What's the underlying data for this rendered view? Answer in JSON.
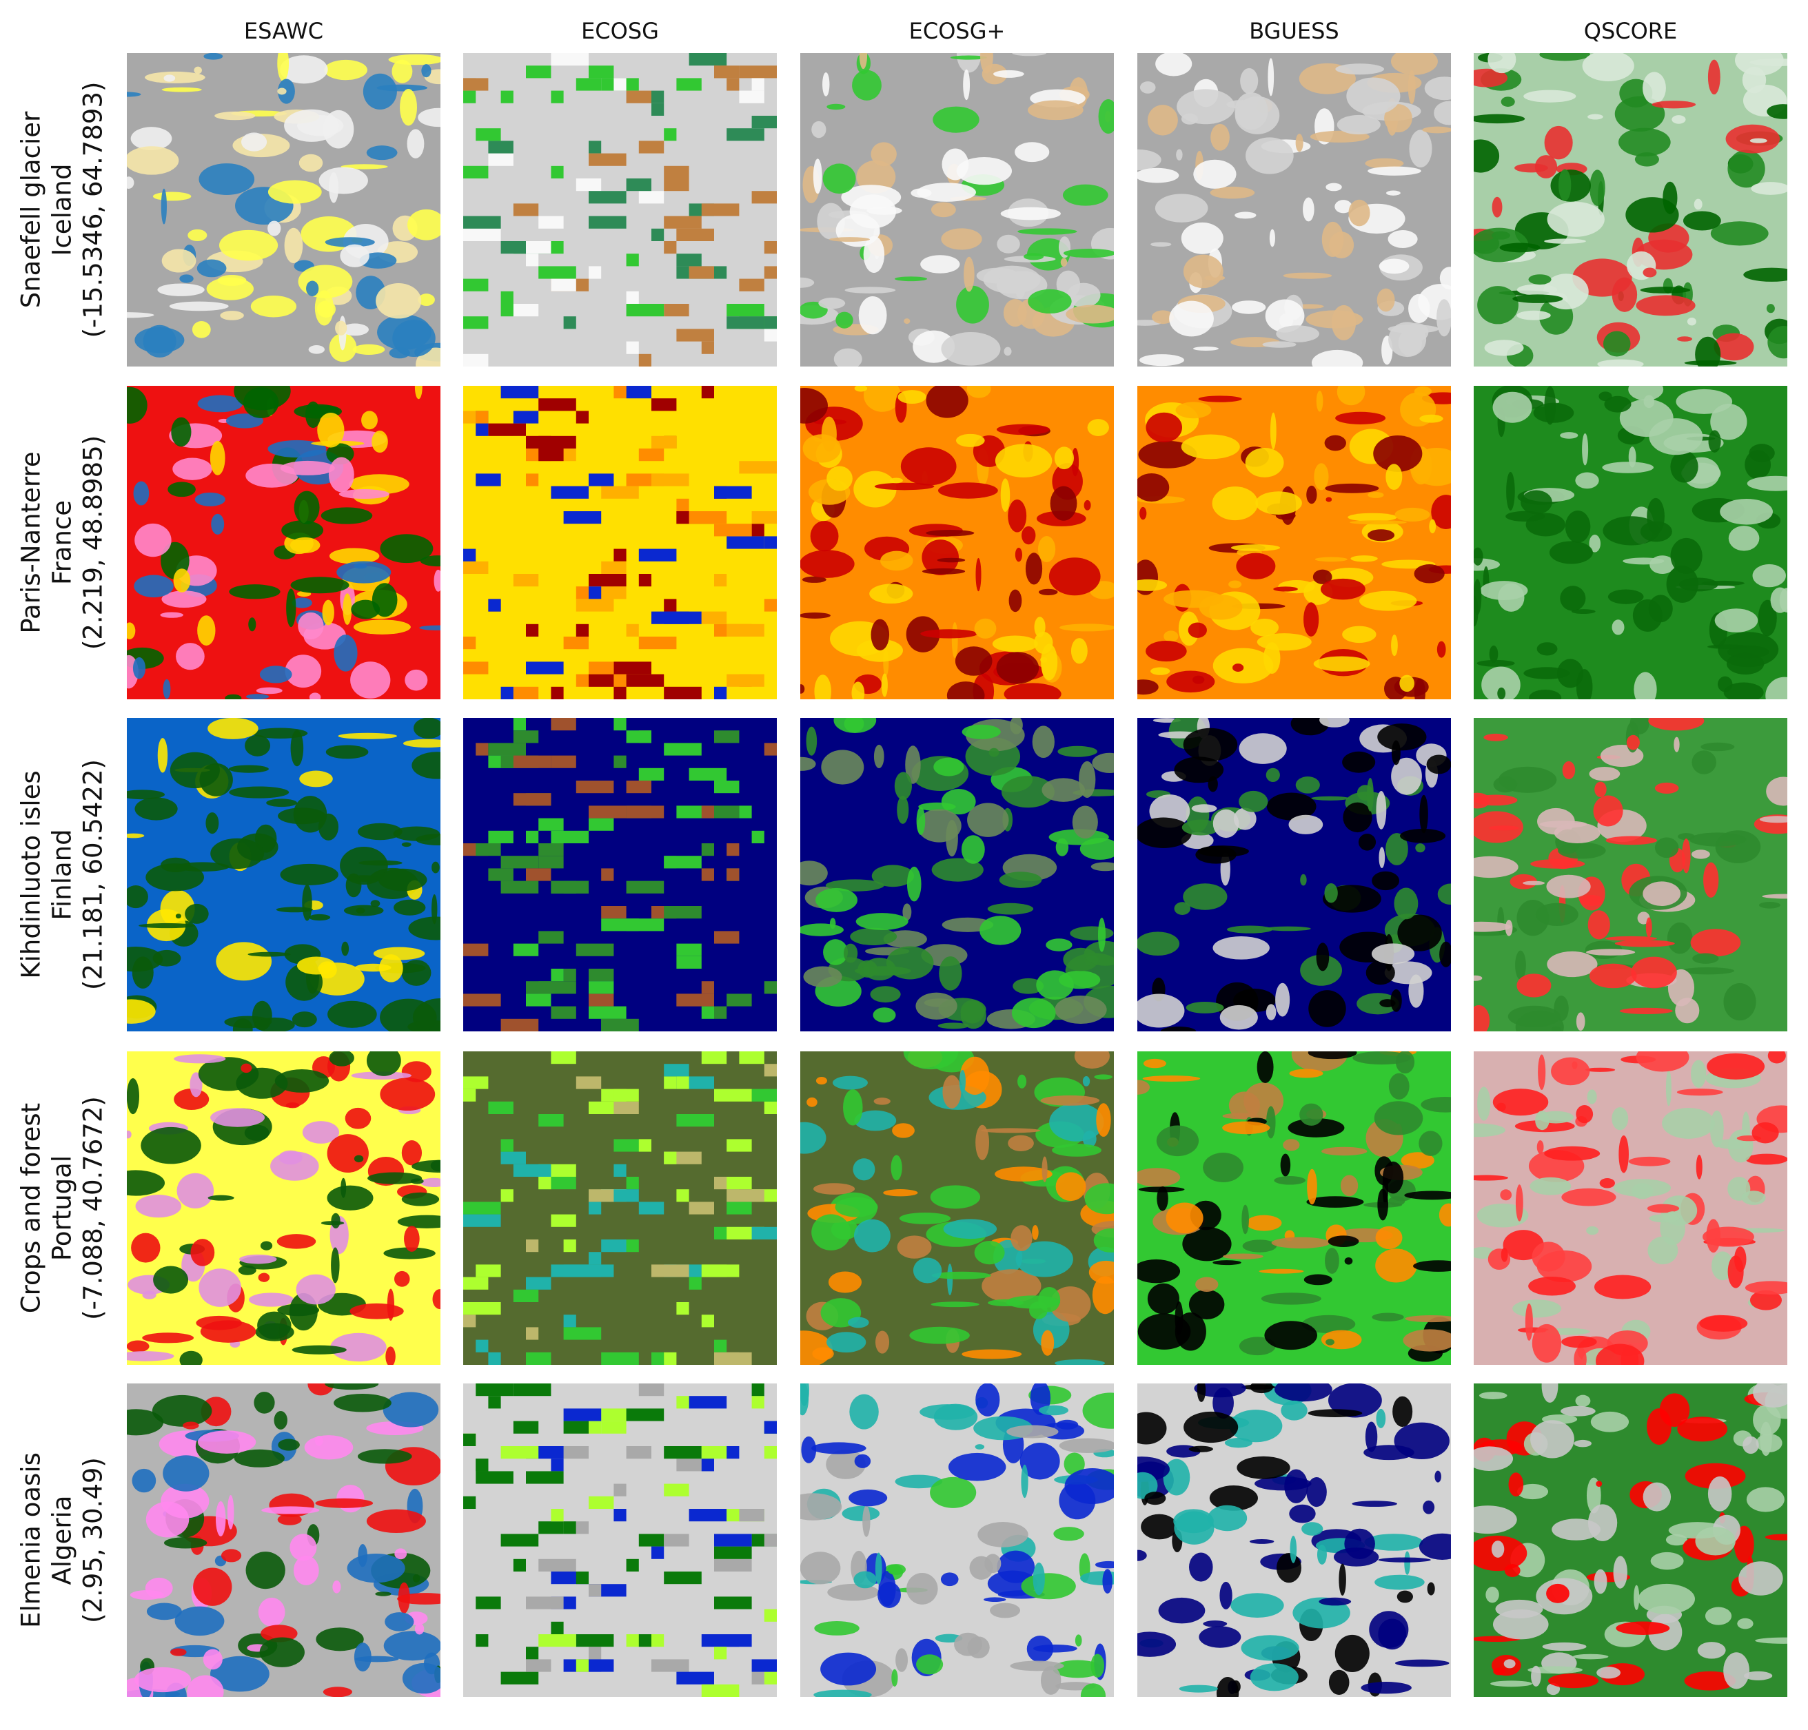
{
  "columns": [
    "ESAWC",
    "ECOSG",
    "ECOSG+",
    "BGUESS",
    "QSCORE"
  ],
  "rows": [
    {
      "name": "Snaefell glacier",
      "country": "Iceland",
      "coords": "(-15.5346, 64.7893)"
    },
    {
      "name": "Paris-Nanterre",
      "country": "France",
      "coords": "(2.219, 48.8985)"
    },
    {
      "name": "Kihdinluoto isles",
      "country": "Finland",
      "coords": "(21.181, 60.5422)"
    },
    {
      "name": "Crops and forest",
      "country": "Portugal",
      "coords": "(-7.088, 40.7672)"
    },
    {
      "name": "Elmenia oasis",
      "country": "Algeria",
      "coords": "(2.95, 30.49)"
    }
  ]
}
